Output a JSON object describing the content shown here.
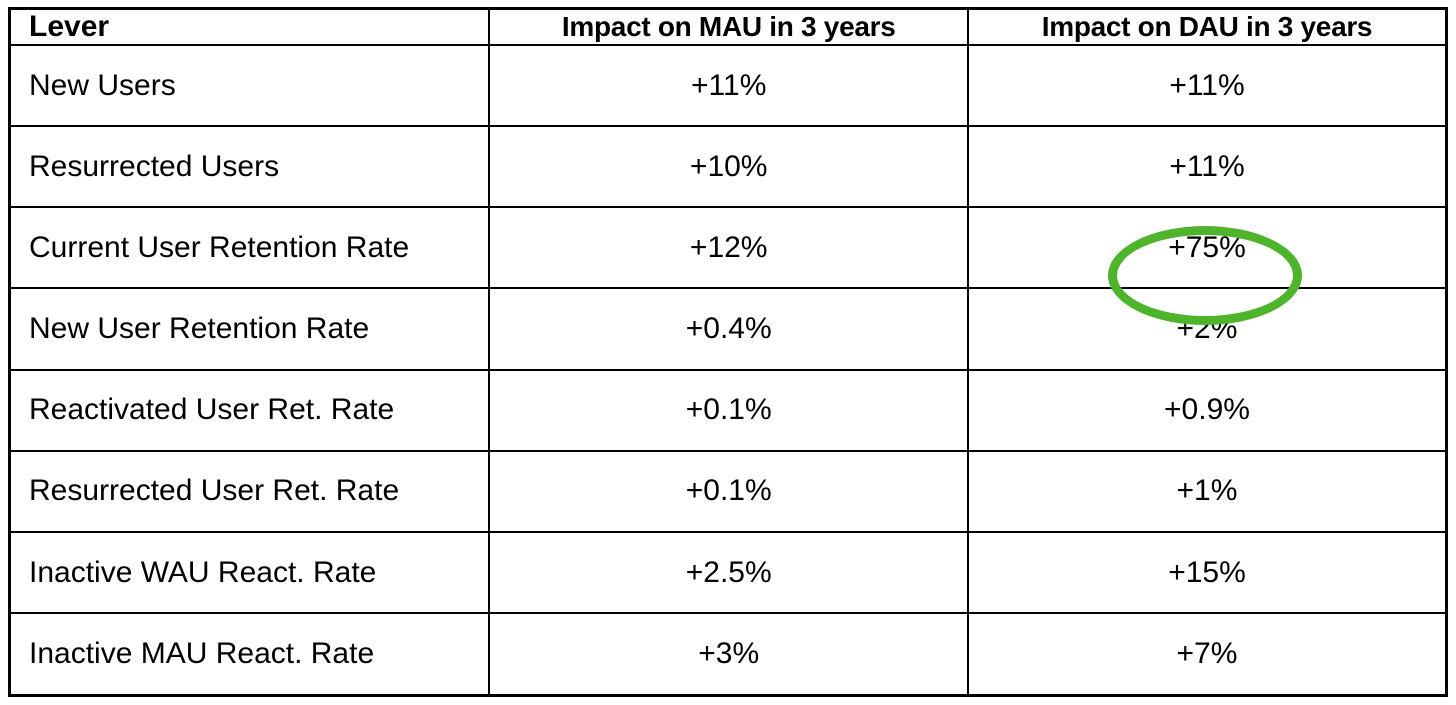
{
  "chart_data": {
    "type": "table",
    "title": "",
    "columns": [
      "Lever",
      "Impact on MAU in 3 years",
      "Impact on DAU in 3 years"
    ],
    "rows": [
      {
        "lever": "New Users",
        "mau": "+11%",
        "dau": "+11%"
      },
      {
        "lever": "Resurrected Users",
        "mau": "+10%",
        "dau": "+11%"
      },
      {
        "lever": "Current User Retention Rate",
        "mau": "+12%",
        "dau": "+75%"
      },
      {
        "lever": "New User Retention Rate",
        "mau": "+0.4%",
        "dau": "+2%"
      },
      {
        "lever": "Reactivated User Ret. Rate",
        "mau": "+0.1%",
        "dau": "+0.9%"
      },
      {
        "lever": "Resurrected User Ret. Rate",
        "mau": "+0.1%",
        "dau": "+1%"
      },
      {
        "lever": "Inactive WAU React. Rate",
        "mau": "+2.5%",
        "dau": "+15%"
      },
      {
        "lever": "Inactive MAU React. Rate",
        "mau": "+3%",
        "dau": "+7%"
      }
    ]
  },
  "annotation": {
    "shape": "ellipse",
    "color": "#4db42c",
    "highlighted_row": "Current User Retention Rate",
    "highlighted_column": "Impact on DAU in 3 years",
    "highlighted_value": "+75%"
  },
  "style_colors": {
    "border": "#000000",
    "text": "#000000",
    "background": "#ffffff"
  }
}
